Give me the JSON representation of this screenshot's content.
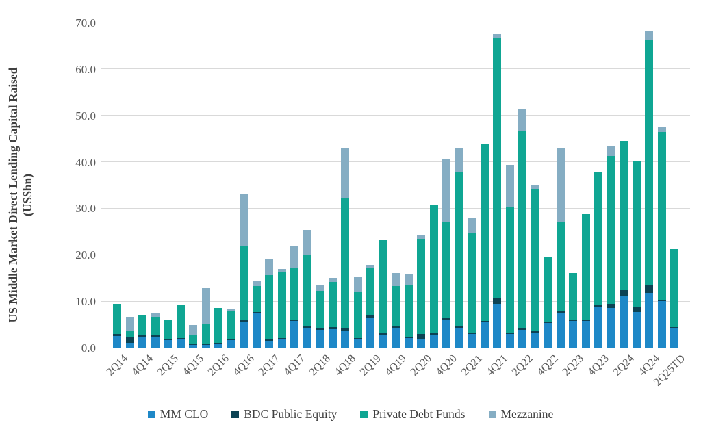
{
  "y_axis": {
    "title_line1": "US Middle Market Direct Lending Capital Raised",
    "title_line2": "(US$bn)",
    "tick_labels": [
      "0.0",
      "10.0",
      "20.0",
      "30.0",
      "40.0",
      "50.0",
      "60.0",
      "70.0"
    ]
  },
  "chart_data": {
    "type": "bar",
    "stacked": true,
    "title": "",
    "xlabel": "",
    "ylabel": "US Middle Market Direct Lending Capital Raised (US$bn)",
    "ylim": [
      0,
      70
    ],
    "grid": true,
    "legend_position": "bottom",
    "x_labels_every": 2,
    "categories": [
      "2Q14",
      "3Q14",
      "4Q14",
      "1Q15",
      "2Q15",
      "3Q15",
      "4Q15",
      "1Q16",
      "2Q16",
      "3Q16",
      "4Q16",
      "1Q17",
      "2Q17",
      "3Q17",
      "4Q17",
      "1Q18",
      "2Q18",
      "3Q18",
      "4Q18",
      "1Q19",
      "2Q19",
      "3Q19",
      "4Q19",
      "1Q20",
      "2Q20",
      "3Q20",
      "4Q20",
      "1Q21",
      "2Q21",
      "3Q21",
      "4Q21",
      "1Q22",
      "2Q22",
      "3Q22",
      "4Q22",
      "1Q23",
      "2Q23",
      "3Q23",
      "4Q23",
      "1Q24",
      "2Q24",
      "3Q24",
      "4Q24",
      "1Q25",
      "2Q25TD"
    ],
    "shown_tick_labels": [
      "2Q14",
      "4Q14",
      "2Q15",
      "4Q15",
      "2Q16",
      "4Q16",
      "2Q17",
      "4Q17",
      "2Q18",
      "4Q18",
      "2Q19",
      "4Q19",
      "2Q20",
      "4Q20",
      "2Q21",
      "4Q21",
      "2Q22",
      "4Q22",
      "2Q23",
      "4Q23",
      "2Q24",
      "4Q24",
      "2Q25TD"
    ],
    "series": [
      {
        "name": "MM CLO",
        "color": "#1E88C7",
        "values": [
          2.5,
          1.0,
          2.4,
          2.2,
          1.6,
          1.8,
          0.7,
          0.7,
          0.9,
          1.6,
          5.5,
          7.3,
          1.3,
          1.7,
          5.7,
          4.1,
          3.9,
          4.0,
          3.7,
          1.7,
          6.5,
          2.8,
          4.1,
          2.0,
          1.8,
          2.7,
          6.1,
          4.1,
          2.9,
          5.4,
          9.5,
          3.0,
          3.8,
          3.2,
          5.3,
          7.5,
          5.8,
          5.7,
          8.8,
          8.6,
          11.0,
          7.6,
          11.8,
          10.0,
          4.2
        ]
      },
      {
        "name": "BDC Public Equity",
        "color": "#0C4354",
        "values": [
          0.4,
          1.2,
          0.4,
          0.4,
          0.3,
          0.3,
          0.1,
          0.1,
          0.1,
          0.3,
          0.4,
          0.4,
          0.6,
          0.3,
          0.3,
          0.4,
          0.3,
          0.4,
          0.4,
          0.4,
          0.4,
          0.5,
          0.4,
          0.4,
          1.2,
          0.4,
          0.4,
          0.4,
          0.2,
          0.4,
          1.1,
          0.3,
          0.3,
          0.3,
          0.3,
          0.3,
          0.3,
          0.2,
          0.3,
          0.9,
          1.4,
          1.3,
          1.7,
          0.3,
          0.2
        ]
      },
      {
        "name": "Private Debt Funds",
        "color": "#0FA693",
        "values": [
          6.5,
          1.4,
          4.2,
          4.1,
          4.1,
          7.2,
          2.0,
          4.4,
          7.6,
          5.9,
          16.0,
          5.6,
          13.7,
          14.4,
          11.1,
          15.4,
          8.0,
          9.7,
          28.2,
          10.0,
          10.3,
          19.9,
          8.7,
          11.1,
          20.4,
          27.5,
          20.4,
          33.2,
          21.5,
          37.9,
          56.2,
          27.0,
          42.4,
          30.7,
          14.0,
          19.1,
          9.9,
          22.9,
          28.7,
          31.8,
          32.1,
          31.2,
          52.8,
          36.1,
          16.8
        ]
      },
      {
        "name": "Mezzanine",
        "color": "#85ADC3",
        "values": [
          0,
          3.0,
          0,
          0.8,
          0,
          0,
          2.1,
          7.6,
          0,
          0.5,
          11.3,
          1.2,
          3.4,
          0.6,
          4.7,
          5.4,
          1.2,
          1.0,
          10.8,
          3.1,
          0.7,
          0,
          2.9,
          2.4,
          0.8,
          0,
          13.6,
          5.4,
          3.4,
          0,
          0.9,
          9.0,
          4.9,
          0.9,
          0,
          16.2,
          0,
          0,
          0,
          2.2,
          0,
          0,
          2.0,
          1.1,
          0
        ]
      }
    ]
  },
  "colors": {
    "gridline": "#d9d9d9",
    "axis_line": "#bfbfbf",
    "tick_text": "#595959",
    "title_text": "#404040"
  }
}
